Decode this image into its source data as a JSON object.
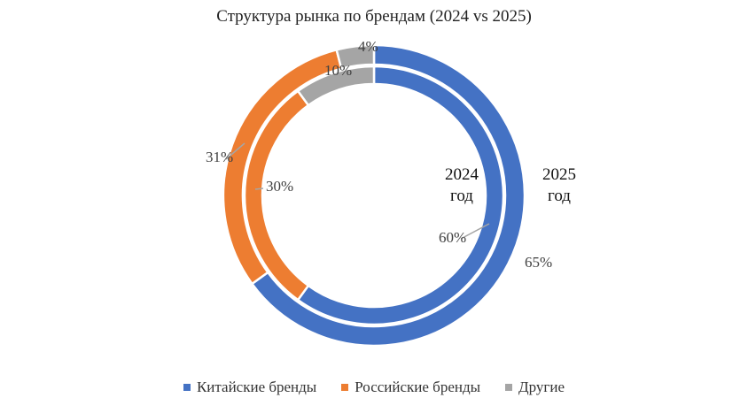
{
  "chart_data": {
    "type": "donut",
    "title": "Структура рынка по брендам (2024  vs 2025)",
    "categories": [
      "Китайские бренды",
      "Российские бренды",
      "Другие"
    ],
    "colors": [
      "#4472C4",
      "#ED7D31",
      "#A5A5A5"
    ],
    "series": [
      {
        "year_line1": "2024",
        "year_line2": "год",
        "values": [
          60,
          30,
          10
        ],
        "labels": [
          "60%",
          "30%",
          "10%"
        ]
      },
      {
        "year_line1": "2025",
        "year_line2": "год",
        "values": [
          65,
          31,
          4
        ],
        "labels": [
          "65%",
          "31%",
          "4%"
        ]
      }
    ]
  }
}
